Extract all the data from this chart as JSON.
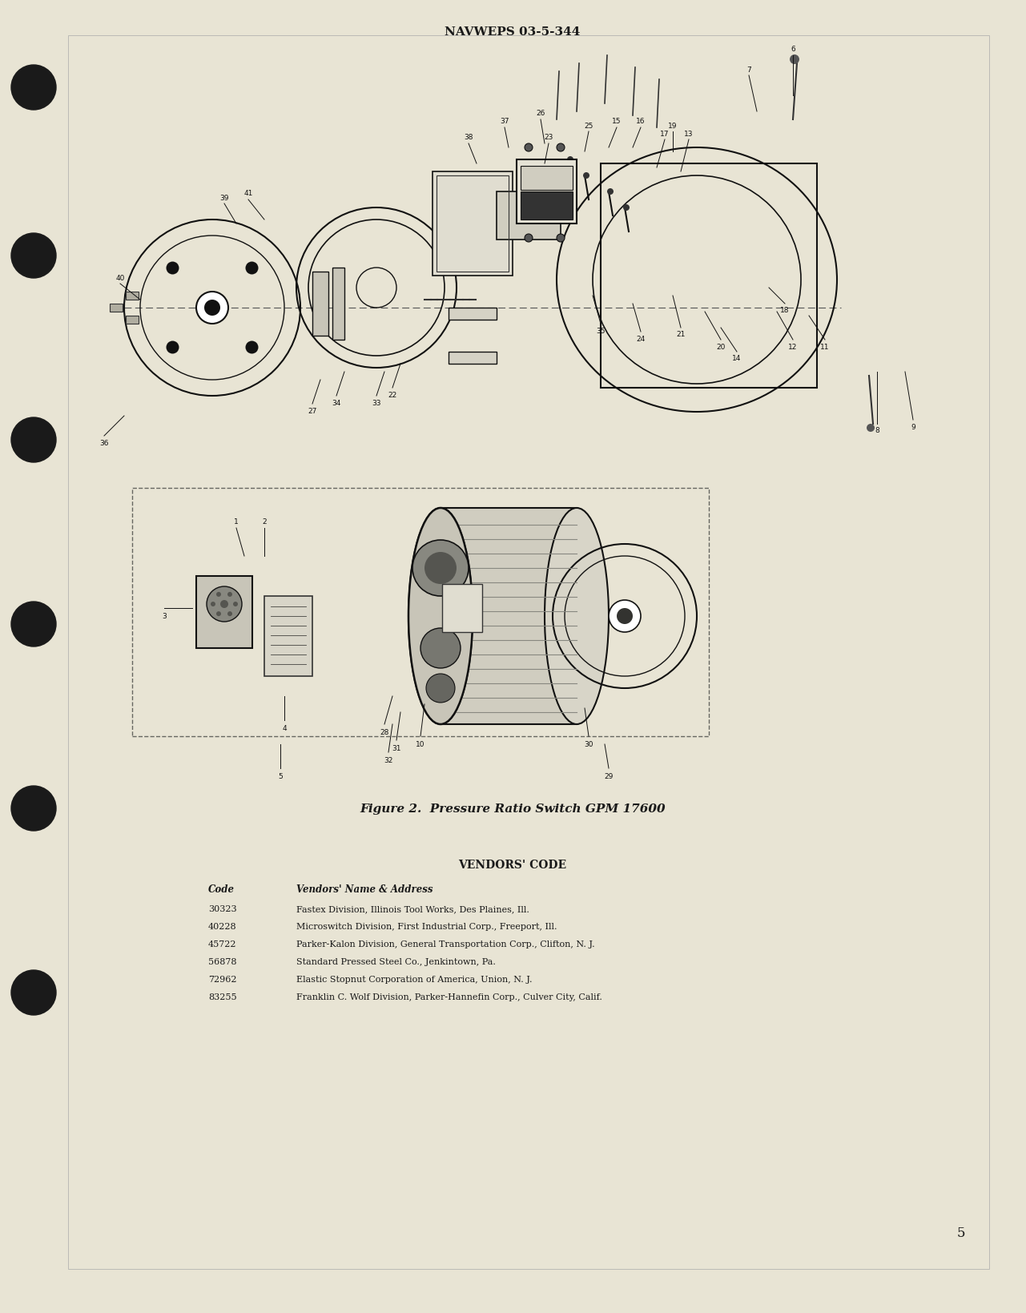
{
  "background_color": "#f0ede0",
  "page_background": "#e8e4d4",
  "header_text": "NAVWEPS 03-5-344",
  "figure_caption": "Figure 2.  Pressure Ratio Switch GPM 17600",
  "page_number": "5",
  "vendors_code_title": "VENDORS' CODE",
  "vendors_header_code": "Code",
  "vendors_header_name": "Vendors' Name & Address",
  "vendors": [
    {
      "code": "30323",
      "name": "Fastex Division, Illinois Tool Works, Des Plaines, Ill."
    },
    {
      "code": "40228",
      "name": "Microswitch Division, First Industrial Corp., Freeport, Ill."
    },
    {
      "code": "45722",
      "name": "Parker-Kalon Division, General Transportation Corp., Clifton, N. J."
    },
    {
      "code": "56878",
      "name": "Standard Pressed Steel Co., Jenkintown, Pa."
    },
    {
      "code": "72962",
      "name": "Elastic Stopnut Corporation of America, Union, N. J."
    },
    {
      "code": "83255",
      "name": "Franklin C. Wolf Division, Parker-Hannefin Corp., Culver City, Calif."
    }
  ],
  "hole_color": "#1a1a1a",
  "border_color": "#333333",
  "text_color": "#1a1a1a",
  "diagram_border_color": "#555555"
}
